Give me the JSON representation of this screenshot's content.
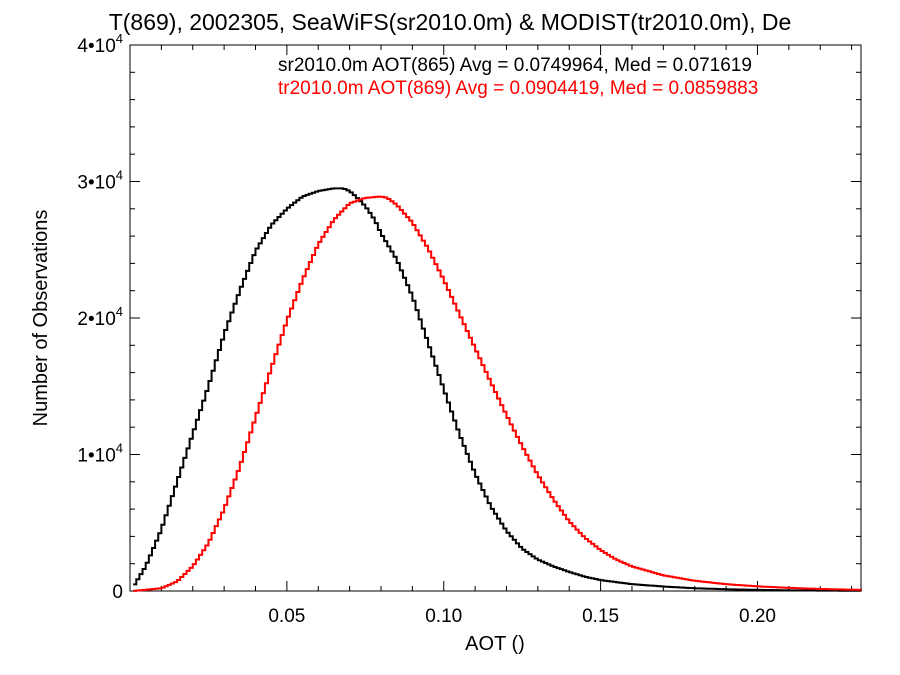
{
  "chart_data": {
    "type": "line",
    "title": "T(869), 2002305, SeaWiFS(sr2010.0m) & MODIST(tr2010.0m), De",
    "xlabel": "AOT ()",
    "ylabel": "Number of Observations",
    "xlim": [
      0.0,
      0.233
    ],
    "ylim": [
      0,
      40000
    ],
    "x_ticks": [
      {
        "value": 0.05,
        "label": "0.05"
      },
      {
        "value": 0.1,
        "label": "0.10"
      },
      {
        "value": 0.15,
        "label": "0.15"
      },
      {
        "value": 0.2,
        "label": "0.20"
      }
    ],
    "y_ticks": [
      {
        "value": 0,
        "mant": "0",
        "exp": ""
      },
      {
        "value": 10000,
        "mant": "1•10",
        "exp": "4"
      },
      {
        "value": 20000,
        "mant": "2•10",
        "exp": "4"
      },
      {
        "value": 30000,
        "mant": "3•10",
        "exp": "4"
      },
      {
        "value": 40000,
        "mant": "4•10",
        "exp": "4"
      }
    ],
    "grid": false,
    "annotations": [
      {
        "text": "sr2010.0m AOT(865) Avg = 0.0749964, Med = 0.071619",
        "color": "#000000"
      },
      {
        "text": "tr2010.0m AOT(869) Avg = 0.0904419, Med = 0.0859883",
        "color": "#ff0000"
      }
    ],
    "series": [
      {
        "color": "#000000",
        "x": [
          0.001,
          0.005,
          0.01,
          0.015,
          0.02,
          0.025,
          0.03,
          0.035,
          0.04,
          0.045,
          0.05,
          0.055,
          0.06,
          0.065,
          0.068,
          0.07,
          0.072,
          0.075,
          0.078,
          0.08,
          0.085,
          0.09,
          0.095,
          0.1,
          0.105,
          0.11,
          0.115,
          0.12,
          0.125,
          0.13,
          0.135,
          0.14,
          0.145,
          0.15,
          0.16,
          0.17,
          0.18,
          0.19,
          0.2,
          0.21,
          0.22,
          0.233
        ],
        "y": [
          300,
          1800,
          4500,
          8000,
          11500,
          15000,
          18800,
          22000,
          24900,
          26800,
          28000,
          28900,
          29300,
          29500,
          29500,
          29300,
          28900,
          28200,
          27200,
          26200,
          24300,
          21600,
          18200,
          14800,
          11500,
          8600,
          6200,
          4400,
          3100,
          2300,
          1800,
          1400,
          1050,
          800,
          500,
          330,
          200,
          130,
          85,
          50,
          30,
          15
        ]
      },
      {
        "color": "#ff0000",
        "x": [
          0.001,
          0.01,
          0.015,
          0.02,
          0.025,
          0.03,
          0.035,
          0.04,
          0.045,
          0.05,
          0.055,
          0.06,
          0.065,
          0.07,
          0.075,
          0.08,
          0.082,
          0.085,
          0.09,
          0.095,
          0.1,
          0.105,
          0.11,
          0.115,
          0.12,
          0.125,
          0.13,
          0.135,
          0.14,
          0.145,
          0.15,
          0.155,
          0.16,
          0.17,
          0.18,
          0.19,
          0.2,
          0.21,
          0.22,
          0.233
        ],
        "y": [
          0,
          200,
          700,
          1800,
          3500,
          6000,
          9100,
          12700,
          16300,
          19800,
          22800,
          25400,
          27200,
          28400,
          28800,
          28900,
          28800,
          28300,
          27000,
          25100,
          22800,
          20300,
          17800,
          15300,
          12900,
          10600,
          8500,
          6700,
          5100,
          3900,
          3000,
          2300,
          1800,
          1150,
          750,
          500,
          340,
          230,
          150,
          80
        ]
      }
    ]
  }
}
